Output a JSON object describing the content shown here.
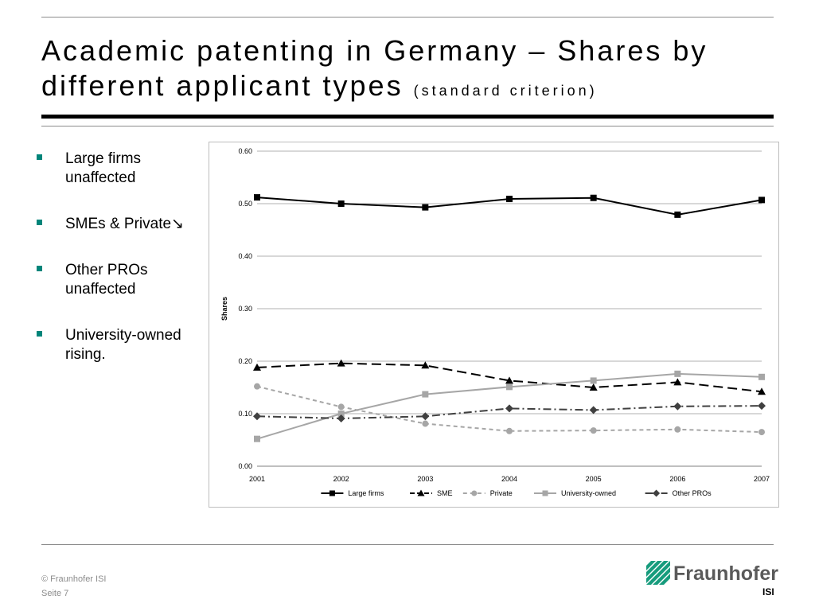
{
  "slide": {
    "title": "Academic patenting in Germany – Shares by different applicant types",
    "title_suffix": "(standard criterion)",
    "bullets": [
      "Large firms unaffected",
      "SMEs & Private↘",
      "Other PROs unaffected",
      "University-owned rising."
    ],
    "footer_copyright": "© Fraunhofer ISI",
    "footer_page": "Seite 7",
    "logo_text": "Fraunhofer",
    "logo_subtext": "ISI",
    "accent_color": "#00857a"
  },
  "chart_data": {
    "type": "line",
    "title": "",
    "xlabel": "",
    "ylabel": "Shares",
    "x": [
      "2001",
      "2002",
      "2003",
      "2004",
      "2005",
      "2006",
      "2007"
    ],
    "ylim": [
      0,
      0.6
    ],
    "yticks": [
      "0.00",
      "0.10",
      "0.20",
      "0.30",
      "0.40",
      "0.50",
      "0.60"
    ],
    "grid": true,
    "legend_position": "bottom",
    "series": [
      {
        "name": "Large firms",
        "values": [
          0.512,
          0.5,
          0.493,
          0.509,
          0.511,
          0.479,
          0.507
        ],
        "color": "#000000",
        "dash": "solid",
        "marker": "square"
      },
      {
        "name": "SME",
        "values": [
          0.188,
          0.196,
          0.192,
          0.163,
          0.15,
          0.16,
          0.142
        ],
        "color": "#000000",
        "dash": "dashed",
        "marker": "triangle"
      },
      {
        "name": "Private",
        "values": [
          0.152,
          0.113,
          0.081,
          0.067,
          0.068,
          0.07,
          0.065
        ],
        "color": "#a6a6a6",
        "dash": "dotted",
        "marker": "circle"
      },
      {
        "name": "University-owned",
        "values": [
          0.052,
          0.1,
          0.137,
          0.151,
          0.163,
          0.176,
          0.17
        ],
        "color": "#a6a6a6",
        "dash": "solid",
        "marker": "square"
      },
      {
        "name": "Other PROs",
        "values": [
          0.095,
          0.091,
          0.095,
          0.11,
          0.107,
          0.114,
          0.115
        ],
        "color": "#404040",
        "dash": "dashdot",
        "marker": "diamond"
      }
    ]
  }
}
